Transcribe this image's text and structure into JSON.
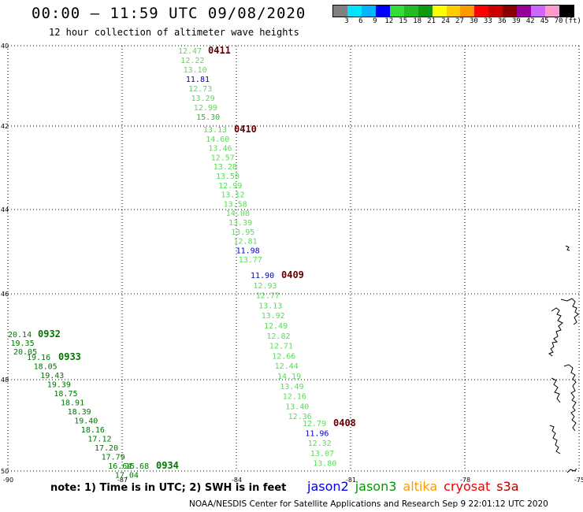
{
  "title": "00:00 – 11:59 UTC 09/08/2020",
  "subtitle": "12 hour collection of altimeter wave heights",
  "scale": {
    "colors": [
      "#808080",
      "#00e5ff",
      "#00b4ff",
      "#0000ff",
      "#33dd33",
      "#22bb22",
      "#119911",
      "#ffff00",
      "#ffcc00",
      "#ff9900",
      "#ff0000",
      "#cc0000",
      "#880000",
      "#990099",
      "#cc66ff",
      "#ff99cc",
      "#000000"
    ],
    "labels": [
      "3",
      "6",
      "9",
      "12",
      "15",
      "18",
      "21",
      "24",
      "27",
      "30",
      "33",
      "36",
      "39",
      "42",
      "45",
      "70",
      "(ft)"
    ]
  },
  "axes": {
    "lat_labels": [
      "40",
      "42",
      "44",
      "46",
      "48",
      "50"
    ],
    "lon_labels": [
      "-90",
      "-87",
      "-84",
      "-81",
      "-78",
      "-75"
    ]
  },
  "tracks": [
    {
      "id": "0411",
      "color": "#660000",
      "points": [
        {
          "v": "12.47",
          "c": "#55dd55"
        },
        {
          "v": "12.22",
          "c": "#55dd55"
        },
        {
          "v": "13.10",
          "c": "#55dd55"
        },
        {
          "v": "11.81",
          "c": "#0000cc"
        },
        {
          "v": "12.73",
          "c": "#55dd55"
        },
        {
          "v": "13.29",
          "c": "#55dd55"
        },
        {
          "v": "12.99",
          "c": "#55dd55"
        },
        {
          "v": "15.30",
          "c": "#33bb33"
        }
      ]
    },
    {
      "id": "0410",
      "color": "#660000",
      "points": [
        {
          "v": "13.13",
          "c": "#55dd55"
        },
        {
          "v": "14.60",
          "c": "#55dd55"
        },
        {
          "v": "13.46",
          "c": "#55dd55"
        },
        {
          "v": "12.57",
          "c": "#55dd55"
        },
        {
          "v": "13.28",
          "c": "#55dd55"
        },
        {
          "v": "13.50",
          "c": "#55dd55"
        },
        {
          "v": "12.99",
          "c": "#55dd55"
        },
        {
          "v": "13.12",
          "c": "#55dd55"
        },
        {
          "v": "13.58",
          "c": "#55dd55"
        },
        {
          "v": "14.08",
          "c": "#55dd55"
        },
        {
          "v": "13.39",
          "c": "#55dd55"
        },
        {
          "v": "13.95",
          "c": "#55dd55"
        },
        {
          "v": "12.81",
          "c": "#55dd55"
        },
        {
          "v": "11.98",
          "c": "#0000cc"
        },
        {
          "v": "13.77",
          "c": "#55dd55"
        }
      ]
    },
    {
      "id": "0409",
      "color": "#660000",
      "points": [
        {
          "v": "11.90",
          "c": "#0000cc"
        },
        {
          "v": "12.93",
          "c": "#55dd55"
        },
        {
          "v": "12.77",
          "c": "#55dd55"
        },
        {
          "v": "13.13",
          "c": "#55dd55"
        },
        {
          "v": "13.92",
          "c": "#55dd55"
        },
        {
          "v": "12.49",
          "c": "#55dd55"
        },
        {
          "v": "12.82",
          "c": "#55dd55"
        },
        {
          "v": "12.71",
          "c": "#55dd55"
        },
        {
          "v": "12.66",
          "c": "#55dd55"
        },
        {
          "v": "12.44",
          "c": "#55dd55"
        },
        {
          "v": "14.19",
          "c": "#55dd55"
        },
        {
          "v": "13.49",
          "c": "#55dd55"
        },
        {
          "v": "12.16",
          "c": "#55dd55"
        },
        {
          "v": "13.40",
          "c": "#55dd55"
        },
        {
          "v": "12.36",
          "c": "#55dd55"
        }
      ]
    },
    {
      "id": "0408",
      "color": "#660000",
      "points": [
        {
          "v": "12.79",
          "c": "#55dd55"
        },
        {
          "v": "11.96",
          "c": "#0000cc"
        },
        {
          "v": "12.32",
          "c": "#55dd55"
        },
        {
          "v": "13.07",
          "c": "#55dd55"
        },
        {
          "v": "13.80",
          "c": "#55dd55"
        }
      ]
    },
    {
      "id": "0932",
      "color": "#007700",
      "points": [
        {
          "v": "20.14",
          "c": "#007700"
        },
        {
          "v": "19.35",
          "c": "#007700"
        },
        {
          "v": "20.05",
          "c": "#007700"
        }
      ]
    },
    {
      "id": "0933",
      "color": "#007700",
      "points": [
        {
          "v": "19.16",
          "c": "#007700"
        },
        {
          "v": "18.05",
          "c": "#007700"
        },
        {
          "v": "19.43",
          "c": "#007700"
        },
        {
          "v": "19.39",
          "c": "#007700"
        },
        {
          "v": "18.75",
          "c": "#007700"
        },
        {
          "v": "18.91",
          "c": "#007700"
        },
        {
          "v": "18.39",
          "c": "#007700"
        },
        {
          "v": "19.40",
          "c": "#007700"
        },
        {
          "v": "18.16",
          "c": "#007700"
        },
        {
          "v": "17.12",
          "c": "#007700"
        },
        {
          "v": "17.20",
          "c": "#007700"
        },
        {
          "v": "17.79",
          "c": "#007700"
        },
        {
          "v": "16.64",
          "c": "#007700"
        },
        {
          "v": "17.04",
          "c": "#007700"
        }
      ]
    },
    {
      "id": "0934",
      "color": "#007700",
      "points": [
        {
          "v": "15.68",
          "c": "#007700"
        }
      ]
    }
  ],
  "note": "note: 1) Time is in UTC; 2) SWH is in feet",
  "legend": [
    {
      "label": "jason2",
      "color": "#0000dd"
    },
    {
      "label": "jason3",
      "color": "#009900"
    },
    {
      "label": "altika",
      "color": "#ff9900"
    },
    {
      "label": "cryosat",
      "color": "#ee0000"
    },
    {
      "label": "s3a",
      "color": "#aa0000"
    }
  ],
  "footer": "NOAA/NESDIS Center for Satellite Applications and Research   Sep  9 22:01:12 UTC 2020"
}
